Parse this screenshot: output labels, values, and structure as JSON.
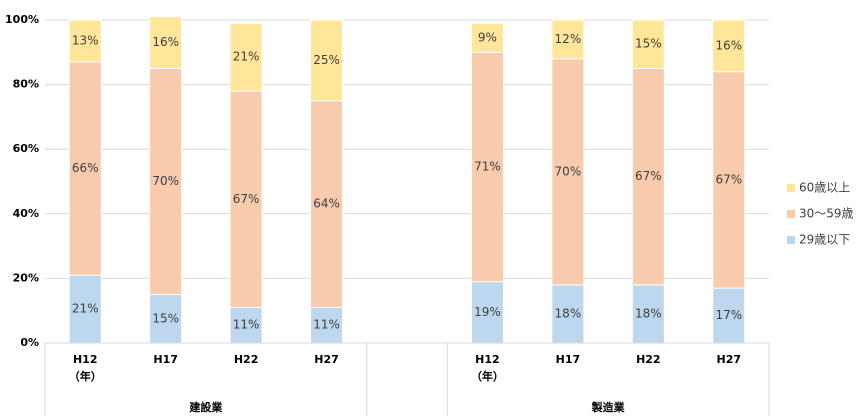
{
  "chart_data": {
    "type": "stacked_bar",
    "categories": [
      "H12\n（年）",
      "H17",
      "H22",
      "H27",
      null,
      "H12\n（年）",
      "H17",
      "H22",
      "H27"
    ],
    "groups": [
      "建設業",
      "製造業"
    ],
    "series": [
      {
        "name": "29歳以下",
        "color": "#bdd7ee",
        "values": [
          21,
          15,
          11,
          11,
          null,
          19,
          18,
          18,
          17
        ],
        "value_labels": [
          "21%",
          "15%",
          "11%",
          "11%",
          null,
          "19%",
          "18%",
          "18%",
          "17%"
        ]
      },
      {
        "name": "30〜59歳",
        "color": "#f8cbad",
        "values": [
          66,
          70,
          67,
          64,
          null,
          71,
          70,
          67,
          67
        ],
        "value_labels": [
          "66%",
          "70%",
          "67%",
          "64%",
          null,
          "71%",
          "70%",
          "67%",
          "67%"
        ]
      },
      {
        "name": "60歳以上",
        "color": "#ffe699",
        "values": [
          13,
          16,
          21,
          25,
          null,
          9,
          12,
          15,
          16
        ],
        "value_labels": [
          "13%",
          "16%",
          "21%",
          "25%",
          null,
          "9%",
          "12%",
          "15%",
          "16%"
        ]
      }
    ],
    "ylim": [
      0,
      100
    ],
    "yticks": [
      {
        "value": 0,
        "label": "0%"
      },
      {
        "value": 20,
        "label": "20%"
      },
      {
        "value": 40,
        "label": "40%"
      },
      {
        "value": 60,
        "label": "60%"
      },
      {
        "value": 80,
        "label": "80%"
      },
      {
        "value": 100,
        "label": "100%"
      }
    ],
    "grid": true,
    "legend": "right"
  }
}
